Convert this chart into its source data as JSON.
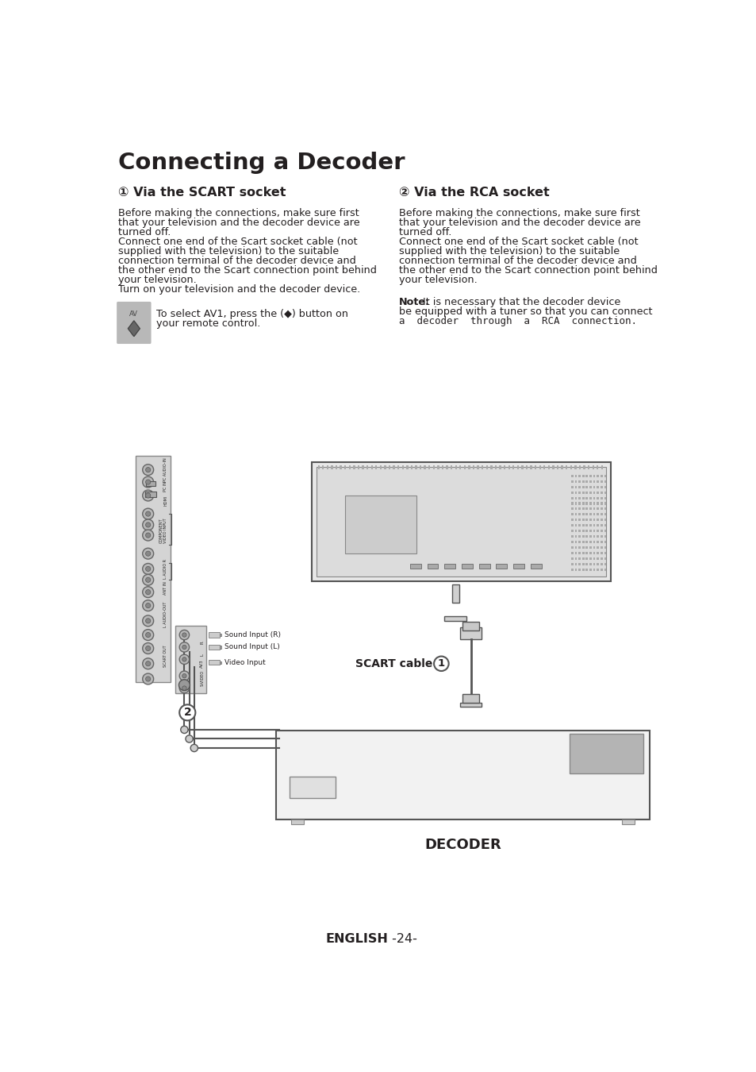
{
  "title": "Connecting a Decoder",
  "sec1_head": "① Via the SCART socket",
  "sec2_head": "② Via the RCA socket",
  "sec1_lines": [
    "Before making the connections, make sure first",
    "that your television and the decoder device are",
    "turned off.",
    "Connect one end of the Scart socket cable (not",
    "supplied with the television) to the suitable",
    "connection terminal of the decoder device and",
    "the other end to the Scart connection point behind",
    "your television.",
    "Turn on your television and the decoder device."
  ],
  "sec1_extra1": "To select AV1, press the (◆) button on",
  "sec1_extra2": "your remote control.",
  "sec2_lines": [
    "Before making the connections, make sure first",
    "that your television and the decoder device are",
    "turned off.",
    "Connect one end of the Scart socket cable (not",
    "supplied with the television) to the suitable",
    "connection terminal of the decoder device and",
    "the other end to the Scart connection point behind",
    "your television."
  ],
  "note_bold": "Note:",
  "note_line1": " It is necessary that the decoder device",
  "note_line2": "be equipped with a tuner so that you can connect",
  "note_line3": "a  decoder  through  a  RCA  connection.",
  "footer_bold": "ENGLISH",
  "footer_normal": " -24-",
  "bg_color": "#ffffff",
  "text_color": "#231f20",
  "panel_color": "#d8d8d8",
  "connector_color": "#c0c0c0",
  "tv_color": "#e0e0e0",
  "decoder_color": "#f2f2f2",
  "dark_gray": "#555555",
  "mid_gray": "#888888",
  "scart_label": "SCART cable"
}
